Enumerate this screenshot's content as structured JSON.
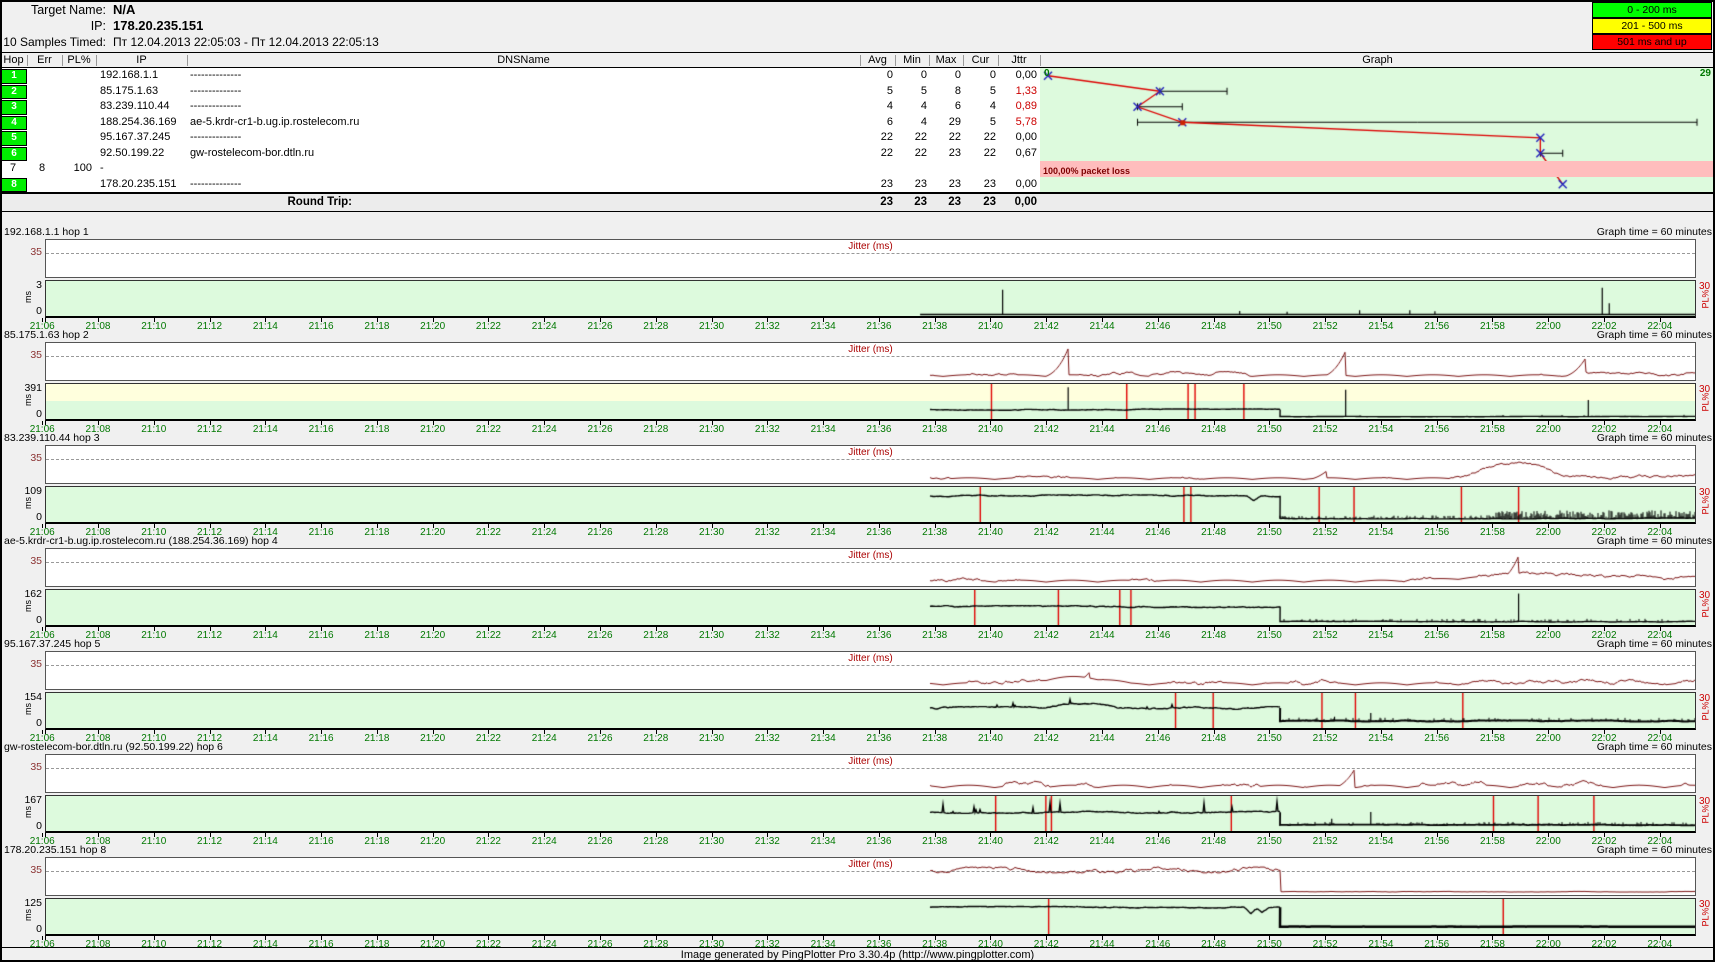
{
  "header": {
    "target_name_label": "Target Name:",
    "target_name": "N/A",
    "ip_label": "IP:",
    "ip": "178.20.235.151",
    "samples_label": "10 Samples Timed:",
    "samples_value": "Пт 12.04.2013 22:05:03 - Пт 12.04.2013 22:05:13"
  },
  "legend": [
    {
      "label": "0 - 200 ms",
      "color": "#00ff00"
    },
    {
      "label": "201 - 500 ms",
      "color": "#ffff00"
    },
    {
      "label": "501 ms and up",
      "color": "#ff0000"
    }
  ],
  "table": {
    "columns": [
      "Hop",
      "Err",
      "PL%",
      "IP",
      "DNSName",
      "Avg",
      "Min",
      "Max",
      "Cur",
      "Jttr",
      "Graph"
    ],
    "rows": [
      {
        "hop": "1",
        "green": true,
        "err": "",
        "pl": "",
        "ip": "192.168.1.1",
        "dns": "--------------",
        "avg": 0,
        "min": 0,
        "max": 0,
        "cur": 0,
        "jttr": "0,00",
        "jttr_red": false
      },
      {
        "hop": "2",
        "green": true,
        "err": "",
        "pl": "",
        "ip": "85.175.1.63",
        "dns": "--------------",
        "avg": 5,
        "min": 5,
        "max": 8,
        "cur": 5,
        "jttr": "1,33",
        "jttr_red": true
      },
      {
        "hop": "3",
        "green": true,
        "err": "",
        "pl": "",
        "ip": "83.239.110.44",
        "dns": "--------------",
        "avg": 4,
        "min": 4,
        "max": 6,
        "cur": 4,
        "jttr": "0,89",
        "jttr_red": true
      },
      {
        "hop": "4",
        "green": true,
        "err": "",
        "pl": "",
        "ip": "188.254.36.169",
        "dns": "ae-5.krdr-cr1-b.ug.ip.rostelecom.ru",
        "avg": 6,
        "min": 4,
        "max": 29,
        "cur": 5,
        "jttr": "5,78",
        "jttr_red": true
      },
      {
        "hop": "5",
        "green": true,
        "err": "",
        "pl": "",
        "ip": "95.167.37.245",
        "dns": "--------------",
        "avg": 22,
        "min": 22,
        "max": 22,
        "cur": 22,
        "jttr": "0,00",
        "jttr_red": false
      },
      {
        "hop": "6",
        "green": true,
        "err": "",
        "pl": "",
        "ip": "92.50.199.22",
        "dns": "gw-rostelecom-bor.dtln.ru",
        "avg": 22,
        "min": 22,
        "max": 23,
        "cur": 22,
        "jttr": "0,67",
        "jttr_red": false
      },
      {
        "hop": "7",
        "green": false,
        "err": "8",
        "pl": "100",
        "ip": "-",
        "dns": "",
        "avg": "",
        "min": "",
        "max": "",
        "cur": "",
        "jttr": "",
        "jttr_red": false,
        "loss_text": "100,00% packet loss"
      },
      {
        "hop": "8",
        "green": true,
        "err": "",
        "pl": "",
        "ip": "178.20.235.151",
        "dns": "--------------",
        "avg": 23,
        "min": 23,
        "max": 23,
        "cur": 23,
        "jttr": "0,00",
        "jttr_red": false
      }
    ],
    "round_trip": {
      "label": "Round Trip:",
      "avg": "23",
      "min": "23",
      "max": "23",
      "cur": "23",
      "jttr": "0,00"
    },
    "graph_scale": {
      "min_label": "0",
      "max_label": "29"
    }
  },
  "chart_data": {
    "type": "line",
    "title": "Graph",
    "x_range_ms": [
      0,
      29
    ],
    "hops": [
      {
        "hop": 1,
        "avg": 0,
        "min": 0,
        "max": 0
      },
      {
        "hop": 2,
        "avg": 5,
        "min": 5,
        "max": 8
      },
      {
        "hop": 3,
        "avg": 4,
        "min": 4,
        "max": 6
      },
      {
        "hop": 4,
        "avg": 6,
        "min": 4,
        "max": 29
      },
      {
        "hop": 5,
        "avg": 22,
        "min": 22,
        "max": 22
      },
      {
        "hop": 6,
        "avg": 22,
        "min": 22,
        "max": 23
      },
      {
        "hop": 7,
        "packet_loss": "100,00% packet loss"
      },
      {
        "hop": 8,
        "avg": 23,
        "min": 23,
        "max": 23
      }
    ]
  },
  "timelines": {
    "graph_time_label": "Graph time = 60 minutes",
    "jitter_label": "Jitter (ms)",
    "jitter_max_label": "35",
    "ms_label": "ms",
    "zero_label": "0",
    "pl_max_label": "30",
    "pl_label": "PL%",
    "x_ticks": [
      "21:06",
      "21:08",
      "21:10",
      "21:12",
      "21:14",
      "21:16",
      "21:18",
      "21:20",
      "21:22",
      "21:24",
      "21:26",
      "21:28",
      "21:30",
      "21:32",
      "21:34",
      "21:36",
      "21:38",
      "21:40",
      "21:42",
      "21:44",
      "21:46",
      "21:48",
      "21:50",
      "21:52",
      "21:54",
      "21:56",
      "21:58",
      "22:00",
      "22:02",
      "22:04"
    ],
    "sections": [
      {
        "title": "192.168.1.1 hop 1",
        "y_max": "3",
        "seed": 11,
        "trace": {
          "mode": "flat",
          "spikes": [
            [
              35.4,
              0.78
            ],
            [
              43.9,
              0.1
            ],
            [
              45.6,
              0.07
            ],
            [
              48.2,
              0.12
            ],
            [
              50.0,
              0.12
            ],
            [
              50.9,
              0.09
            ],
            [
              56.9,
              0.85
            ],
            [
              57.15,
              0.35
            ]
          ],
          "loss": []
        },
        "jitter": {
          "mode": "none"
        }
      },
      {
        "title": "85.175.1.63 hop 2",
        "y_max": "391",
        "yellow_frac": 0.489,
        "seed": 22,
        "trace": {
          "mode": "seg",
          "pre": 0.24,
          "pre_noise": 0.02,
          "post": 0.015,
          "post_noise": 0.006,
          "spikes": [
            [
              37.75,
              0.96
            ],
            [
              47.7,
              0.88
            ],
            [
              56.4,
              0.55
            ]
          ],
          "loss": [
            35.0,
            39.85,
            42.05,
            42.3,
            44.05
          ],
          "post_fuzz": {
            "rate": 0.04,
            "max": 0.06
          }
        },
        "jitter": {
          "mode": "bumps",
          "base": 0.1,
          "spikes": [
            [
              37.75,
              0.92
            ],
            [
              47.7,
              0.85
            ],
            [
              56.3,
              0.62
            ]
          ]
        }
      },
      {
        "title": "83.239.110.44 hop 3",
        "y_max": "109",
        "seed": 33,
        "trace": {
          "mode": "seg",
          "pre": 0.78,
          "pre_noise": 0.03,
          "post": 0.05,
          "post_noise": 0.015,
          "dips": [
            [
              44.4,
              0.14
            ]
          ],
          "spikes": [],
          "loss": [
            34.6,
            41.9,
            42.15,
            46.75,
            48.0,
            51.85,
            53.9
          ],
          "post_fuzz": {
            "rate": 0.45,
            "max": 0.1,
            "late_from": 53.0,
            "late_rate": 0.85,
            "late_max": 0.26
          }
        },
        "jitter": {
          "mode": "bumps",
          "base": 0.1,
          "spikes": [
            [
              47.0,
              0.3
            ]
          ],
          "hump": [
            52.0,
            55.5,
            0.42
          ]
        }
      },
      {
        "title": "ae-5.krdr-cr1-b.ug.ip.rostelecom.ru (188.254.36.169) hop 4",
        "y_max": "162",
        "seed": 44,
        "trace": {
          "mode": "seg",
          "pre": 0.53,
          "pre_noise": 0.03,
          "post": 0.045,
          "post_noise": 0.012,
          "spikes": [
            [
              53.9,
              0.95
            ]
          ],
          "loss": [
            34.4,
            37.4,
            39.6,
            40.0
          ],
          "post_fuzz": {
            "rate": 0.22,
            "max": 0.09
          }
        },
        "jitter": {
          "mode": "bumps",
          "base": 0.12,
          "spikes": [
            [
              53.9,
              0.88
            ]
          ],
          "hump": [
            50.0,
            59.0,
            0.15
          ]
        }
      },
      {
        "title": "95.167.37.245 hop 5",
        "y_max": "154",
        "seed": 55,
        "trace": {
          "mode": "seg",
          "pre": 0.58,
          "pre_noise": 0.045,
          "post": 0.16,
          "post_noise": 0.018,
          "post_lw": 2,
          "hump": [
            37.0,
            39.5,
            0.12
          ],
          "pre_spikes_rate": 0.02,
          "pre_spikes_max": 0.15,
          "spikes": [
            [
              47.3,
              0.3
            ],
            [
              48.6,
              0.42
            ],
            [
              58.2,
              0.22
            ]
          ],
          "loss": [
            41.6,
            42.95,
            46.85,
            48.05,
            51.9
          ],
          "post_fuzz": {
            "rate": 0.28,
            "max": 0.11
          }
        },
        "jitter": {
          "mode": "bumps",
          "base": 0.13,
          "spikes": [
            [
              38.5,
              0.45
            ]
          ],
          "hump": [
            36.0,
            40.0,
            0.2
          ]
        }
      },
      {
        "title": "gw-rostelecom-bor.dtln.ru (92.50.199.22) hop 6",
        "y_max": "167",
        "seed": 66,
        "trace": {
          "mode": "seg",
          "pre": 0.54,
          "pre_noise": 0.035,
          "post": 0.13,
          "post_noise": 0.012,
          "post_lw": 1.8,
          "pre_spikes_rate": 0.05,
          "pre_spikes_max": 0.38,
          "spikes": [
            [
              47.2,
              0.33
            ],
            [
              48.6,
              0.55
            ],
            [
              58.5,
              0.2
            ]
          ],
          "loss": [
            35.15,
            36.95,
            37.15,
            43.6,
            53.0,
            54.6,
            56.6
          ],
          "post_fuzz": {
            "rate": 0.28,
            "max": 0.1
          }
        },
        "jitter": {
          "mode": "bumps",
          "base": 0.15,
          "spikes": [
            [
              48.0,
              0.62
            ]
          ]
        }
      },
      {
        "title": "178.20.235.151 hop 8",
        "y_max": "125",
        "seed": 88,
        "trace": {
          "mode": "seg",
          "pre": 0.8,
          "pre_noise": 0.025,
          "post": 0.17,
          "post_noise": 0.006,
          "post_lw": 2.5,
          "dips": [
            [
              44.3,
              0.22
            ],
            [
              44.7,
              0.15
            ]
          ],
          "spikes": [],
          "loss": [
            37.05,
            53.35
          ],
          "post_fuzz": {
            "rate": 0.02,
            "max": 0.03
          }
        },
        "jitter": {
          "mode": "level",
          "level": 0.72,
          "noise": 0.09
        }
      }
    ]
  },
  "footer": "Image generated by PingPlotter Pro 3.30.4p (http://www.pingplotter.com)"
}
